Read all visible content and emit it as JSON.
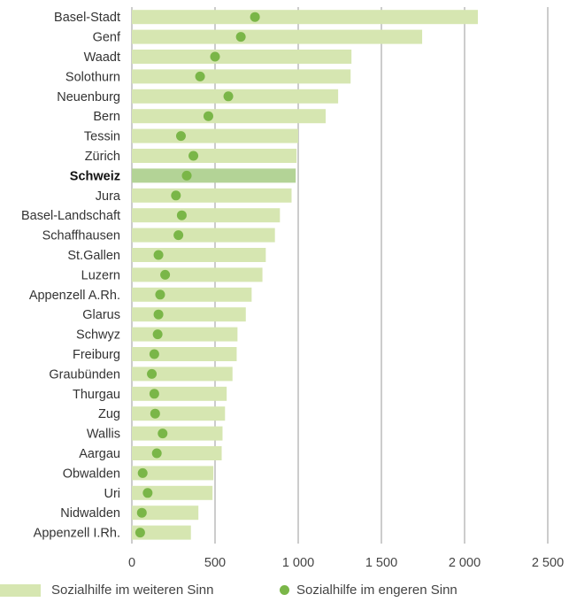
{
  "chart_data": {
    "type": "bar",
    "orientation": "horizontal",
    "categories": [
      "Basel-Stadt",
      "Genf",
      "Waadt",
      "Solothurn",
      "Neuenburg",
      "Bern",
      "Tessin",
      "Zürich",
      "Schweiz",
      "Jura",
      "Basel-Landschaft",
      "Schaffhausen",
      "St.Gallen",
      "Luzern",
      "Appenzell A.Rh.",
      "Glarus",
      "Schwyz",
      "Freiburg",
      "Graubünden",
      "Thurgau",
      "Zug",
      "Wallis",
      "Aargau",
      "Obwalden",
      "Uri",
      "Nidwalden",
      "Appenzell I.Rh."
    ],
    "highlight_category": "Schweiz",
    "series": [
      {
        "name": "Sozialhilfe im weiteren Sinn",
        "kind": "bar",
        "color": "#d6e6b1",
        "highlight_color": "#b3d396",
        "values": [
          2080,
          1745,
          1320,
          1315,
          1240,
          1165,
          1000,
          990,
          985,
          960,
          890,
          860,
          805,
          785,
          720,
          685,
          635,
          630,
          605,
          570,
          560,
          545,
          540,
          490,
          485,
          400,
          355
        ]
      },
      {
        "name": "Sozialhilfe im engeren Sinn",
        "kind": "dot",
        "color": "#7ab648",
        "values": [
          740,
          655,
          500,
          410,
          580,
          460,
          295,
          370,
          330,
          265,
          300,
          280,
          160,
          200,
          170,
          160,
          155,
          135,
          120,
          135,
          140,
          185,
          150,
          65,
          95,
          60,
          50
        ]
      }
    ],
    "xlim": [
      0,
      2500
    ],
    "xticks": [
      0,
      500,
      1000,
      1500,
      2000,
      2500
    ],
    "xtick_labels": [
      "0",
      "500",
      "1 000",
      "1 500",
      "2 000",
      "2 500"
    ],
    "grid": "vertical",
    "legend_position": "bottom"
  }
}
